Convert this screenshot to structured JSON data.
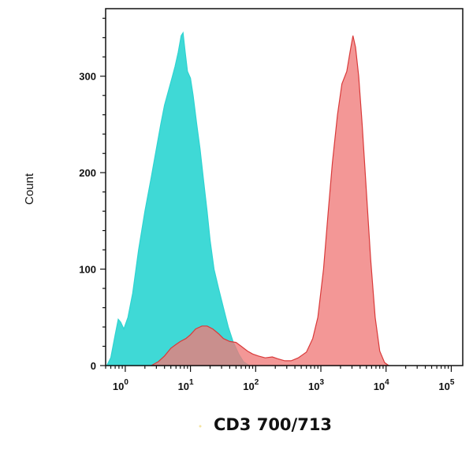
{
  "chart_data": {
    "type": "area",
    "title": "",
    "xlabel": "CD3 700/713",
    "ylabel": "Count",
    "x_scale": "log",
    "xlim": [
      0.5,
      150000
    ],
    "ylim": [
      0,
      370
    ],
    "grid": false,
    "x_ticks": [
      {
        "value": 1,
        "base": "10",
        "exp": "0"
      },
      {
        "value": 10,
        "base": "10",
        "exp": "1"
      },
      {
        "value": 100,
        "base": "10",
        "exp": "2"
      },
      {
        "value": 1000,
        "base": "10",
        "exp": "3"
      },
      {
        "value": 10000,
        "base": "10",
        "exp": "4"
      },
      {
        "value": 100000,
        "base": "10",
        "exp": "5"
      }
    ],
    "y_ticks": [
      0,
      100,
      200,
      300
    ],
    "series": [
      {
        "color": "#2ED3D1",
        "fill_color": "#3FD9D6",
        "points": [
          [
            0.52,
            0
          ],
          [
            0.6,
            8
          ],
          [
            0.7,
            32
          ],
          [
            0.78,
            48
          ],
          [
            0.85,
            45
          ],
          [
            0.95,
            38
          ],
          [
            1.1,
            50
          ],
          [
            1.3,
            75
          ],
          [
            1.6,
            120
          ],
          [
            2.0,
            160
          ],
          [
            2.5,
            195
          ],
          [
            3.0,
            225
          ],
          [
            3.5,
            250
          ],
          [
            4.0,
            270
          ],
          [
            4.6,
            285
          ],
          [
            5.2,
            298
          ],
          [
            5.8,
            310
          ],
          [
            6.5,
            325
          ],
          [
            7.2,
            342
          ],
          [
            7.7,
            345
          ],
          [
            8.3,
            325
          ],
          [
            9.0,
            305
          ],
          [
            10.0,
            298
          ],
          [
            11.0,
            280
          ],
          [
            12.5,
            250
          ],
          [
            14.0,
            225
          ],
          [
            16.0,
            190
          ],
          [
            18.0,
            160
          ],
          [
            20.0,
            130
          ],
          [
            23.0,
            100
          ],
          [
            27.0,
            80
          ],
          [
            32.0,
            60
          ],
          [
            38.0,
            40
          ],
          [
            45.0,
            25
          ],
          [
            55.0,
            12
          ],
          [
            65.0,
            4
          ],
          [
            80.0,
            0
          ]
        ]
      },
      {
        "color": "#D93A3A",
        "fill_color": "#F07A78",
        "points": [
          [
            2.5,
            0
          ],
          [
            3.2,
            4
          ],
          [
            4.0,
            10
          ],
          [
            5.0,
            18
          ],
          [
            6.0,
            22
          ],
          [
            7.0,
            25
          ],
          [
            8.5,
            28
          ],
          [
            10.0,
            32
          ],
          [
            12.0,
            38
          ],
          [
            15.0,
            41
          ],
          [
            18.0,
            41
          ],
          [
            22.0,
            38
          ],
          [
            27.0,
            33
          ],
          [
            32.0,
            28
          ],
          [
            40.0,
            25
          ],
          [
            50.0,
            24
          ],
          [
            60.0,
            20
          ],
          [
            75.0,
            15
          ],
          [
            90.0,
            12
          ],
          [
            110.0,
            10
          ],
          [
            140.0,
            8
          ],
          [
            180.0,
            9
          ],
          [
            220.0,
            7
          ],
          [
            280.0,
            5
          ],
          [
            350.0,
            5
          ],
          [
            450.0,
            8
          ],
          [
            600.0,
            14
          ],
          [
            750.0,
            28
          ],
          [
            900.0,
            50
          ],
          [
            1100.0,
            100
          ],
          [
            1300.0,
            160
          ],
          [
            1500.0,
            210
          ],
          [
            1800.0,
            260
          ],
          [
            2100.0,
            292
          ],
          [
            2500.0,
            305
          ],
          [
            2800.0,
            325
          ],
          [
            3100.0,
            342
          ],
          [
            3400.0,
            330
          ],
          [
            3800.0,
            300
          ],
          [
            4300.0,
            250
          ],
          [
            5000.0,
            180
          ],
          [
            5800.0,
            110
          ],
          [
            6800.0,
            50
          ],
          [
            8000.0,
            15
          ],
          [
            9500.0,
            3
          ],
          [
            11000.0,
            0
          ]
        ]
      }
    ]
  }
}
